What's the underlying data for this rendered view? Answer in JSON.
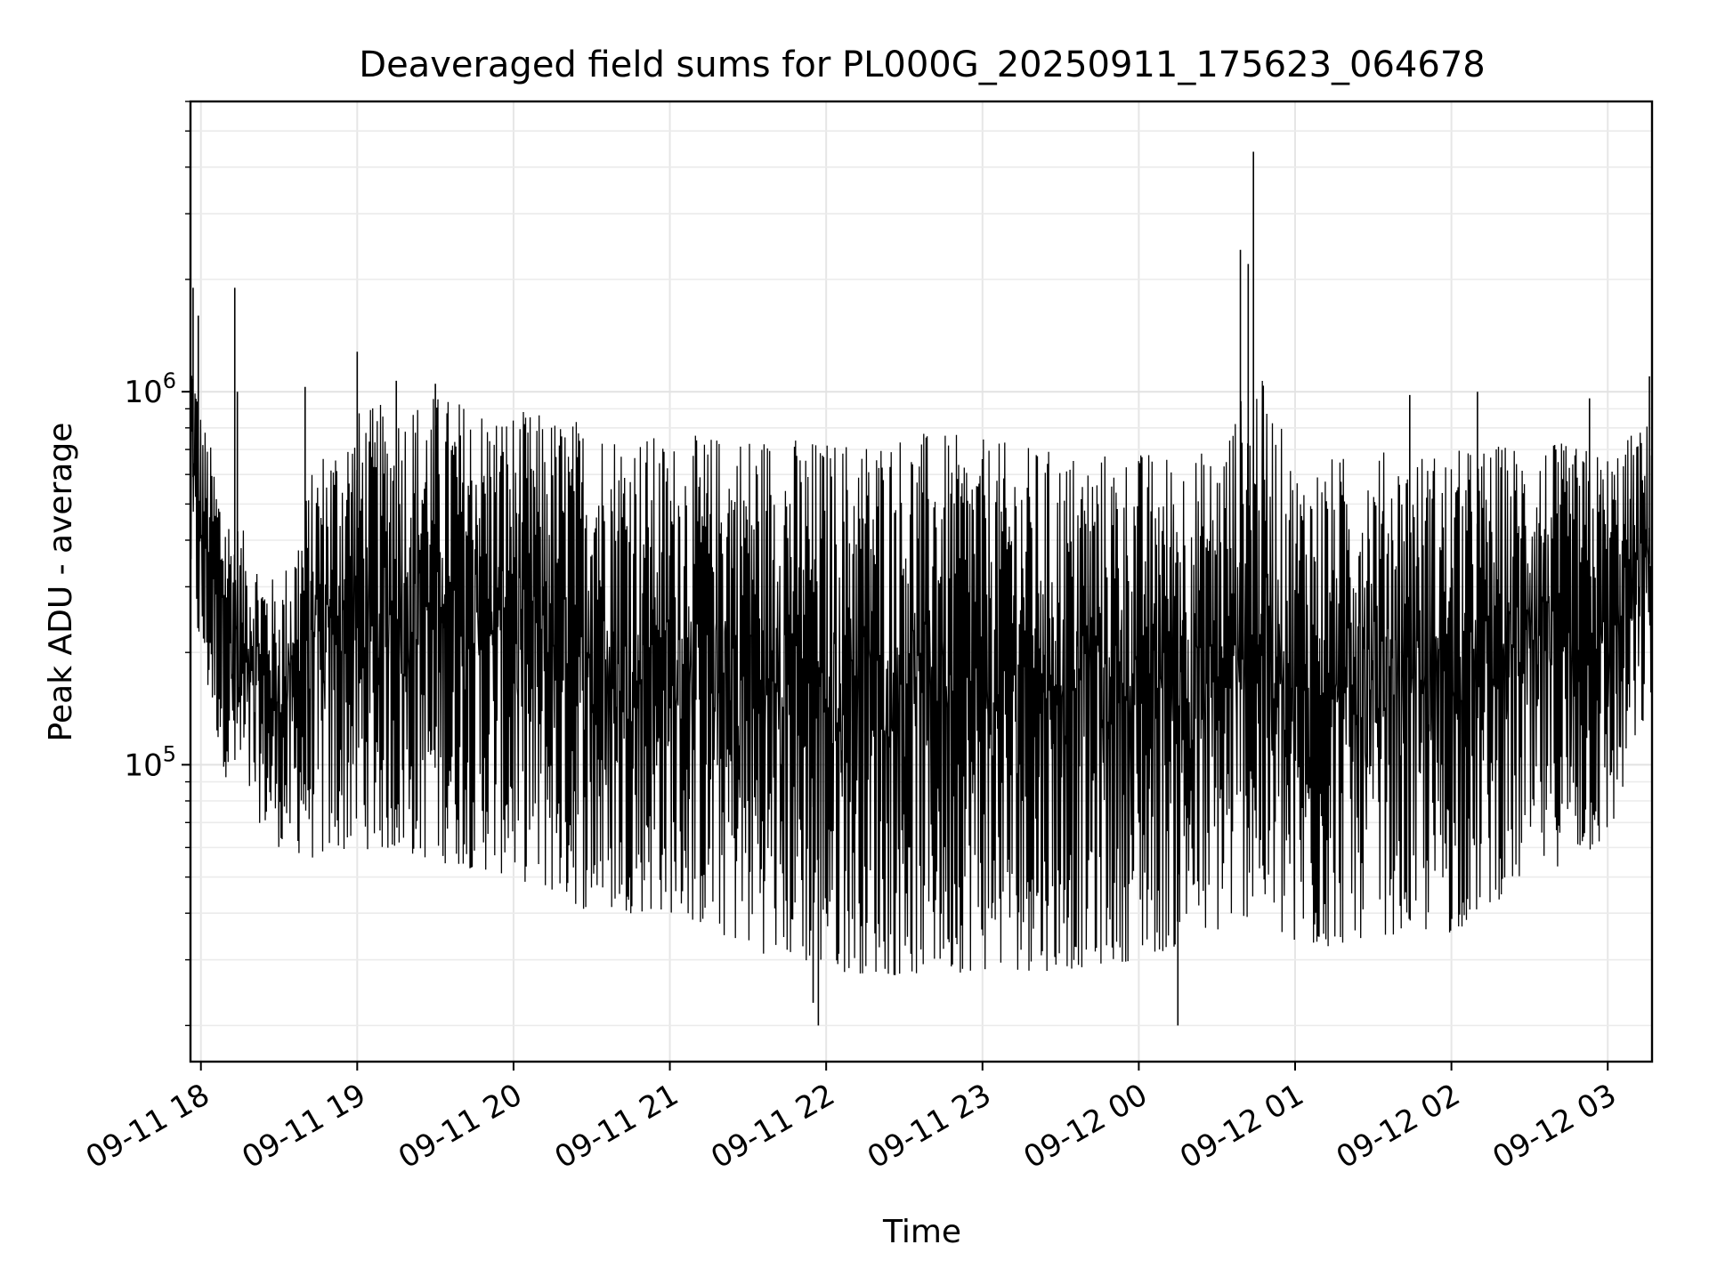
{
  "chart_data": {
    "type": "line",
    "title": "Deaveraged field sums for PL000G_20250911_175623_064678",
    "xlabel": "Time",
    "ylabel": "Peak ADU - average",
    "yscale": "log",
    "xlim": [
      "2025-09-11 17:56",
      "2025-09-12 03:17"
    ],
    "ylim": [
      16000,
      6000000
    ],
    "grid": true,
    "line_color": "#000000",
    "x_tick_labels": [
      "09-11 18",
      "09-11 19",
      "09-11 20",
      "09-11 21",
      "09-11 22",
      "09-11 23",
      "09-12 00",
      "09-12 01",
      "09-12 02",
      "09-12 03"
    ],
    "x_tick_times": [
      "2025-09-11 18:00",
      "2025-09-11 19:00",
      "2025-09-11 20:00",
      "2025-09-11 21:00",
      "2025-09-11 22:00",
      "2025-09-11 23:00",
      "2025-09-12 00:00",
      "2025-09-12 01:00",
      "2025-09-12 02:00",
      "2025-09-12 03:00"
    ],
    "y_major_ticks": [
      100000,
      1000000
    ],
    "y_tick_base": "10",
    "y_tick_exponents": [
      "5",
      "6"
    ],
    "envelope": {
      "note_x": "time",
      "x": [
        "2025-09-11 17:56",
        "2025-09-11 18:00",
        "2025-09-11 18:10",
        "2025-09-11 18:30",
        "2025-09-11 18:45",
        "2025-09-11 19:00",
        "2025-09-11 19:30",
        "2025-09-11 20:00",
        "2025-09-11 20:30",
        "2025-09-11 21:00",
        "2025-09-11 21:30",
        "2025-09-11 22:00",
        "2025-09-11 22:30",
        "2025-09-11 23:00",
        "2025-09-11 23:30",
        "2025-09-12 00:00",
        "2025-09-12 00:30",
        "2025-09-12 00:45",
        "2025-09-12 01:00",
        "2025-09-12 01:30",
        "2025-09-12 02:00",
        "2025-09-12 02:30",
        "2025-09-12 03:00",
        "2025-09-12 03:17"
      ],
      "upper": [
        1500000,
        900000,
        500000,
        300000,
        700000,
        900000,
        1000000,
        900000,
        850000,
        750000,
        800000,
        750000,
        800000,
        750000,
        700000,
        700000,
        700000,
        1200000,
        650000,
        700000,
        700000,
        750000,
        700000,
        850000
      ],
      "lower": [
        300000,
        180000,
        90000,
        60000,
        55000,
        60000,
        55000,
        50000,
        40000,
        40000,
        32000,
        28000,
        27000,
        28000,
        28000,
        30000,
        35000,
        40000,
        30000,
        35000,
        35000,
        50000,
        60000,
        150000
      ]
    },
    "spikes": [
      {
        "x": "2025-09-11 17:57",
        "y": 1900000
      },
      {
        "x": "2025-09-11 17:59",
        "y": 1600000
      },
      {
        "x": "2025-09-11 18:13",
        "y": 1900000
      },
      {
        "x": "2025-09-11 18:14",
        "y": 1000000
      },
      {
        "x": "2025-09-11 18:40",
        "y": 1030000
      },
      {
        "x": "2025-09-11 19:00",
        "y": 1280000
      },
      {
        "x": "2025-09-11 19:15",
        "y": 1070000
      },
      {
        "x": "2025-09-11 19:30",
        "y": 1050000
      },
      {
        "x": "2025-09-11 21:55",
        "y": 23000
      },
      {
        "x": "2025-09-11 21:57",
        "y": 20000
      },
      {
        "x": "2025-09-12 00:15",
        "y": 20000
      },
      {
        "x": "2025-09-12 00:39",
        "y": 2400000
      },
      {
        "x": "2025-09-12 00:42",
        "y": 2200000
      },
      {
        "x": "2025-09-12 00:44",
        "y": 4400000
      },
      {
        "x": "2025-09-12 01:44",
        "y": 980000
      },
      {
        "x": "2025-09-12 02:10",
        "y": 1000000
      },
      {
        "x": "2025-09-12 02:53",
        "y": 960000
      },
      {
        "x": "2025-09-12 03:16",
        "y": 1100000
      }
    ]
  }
}
